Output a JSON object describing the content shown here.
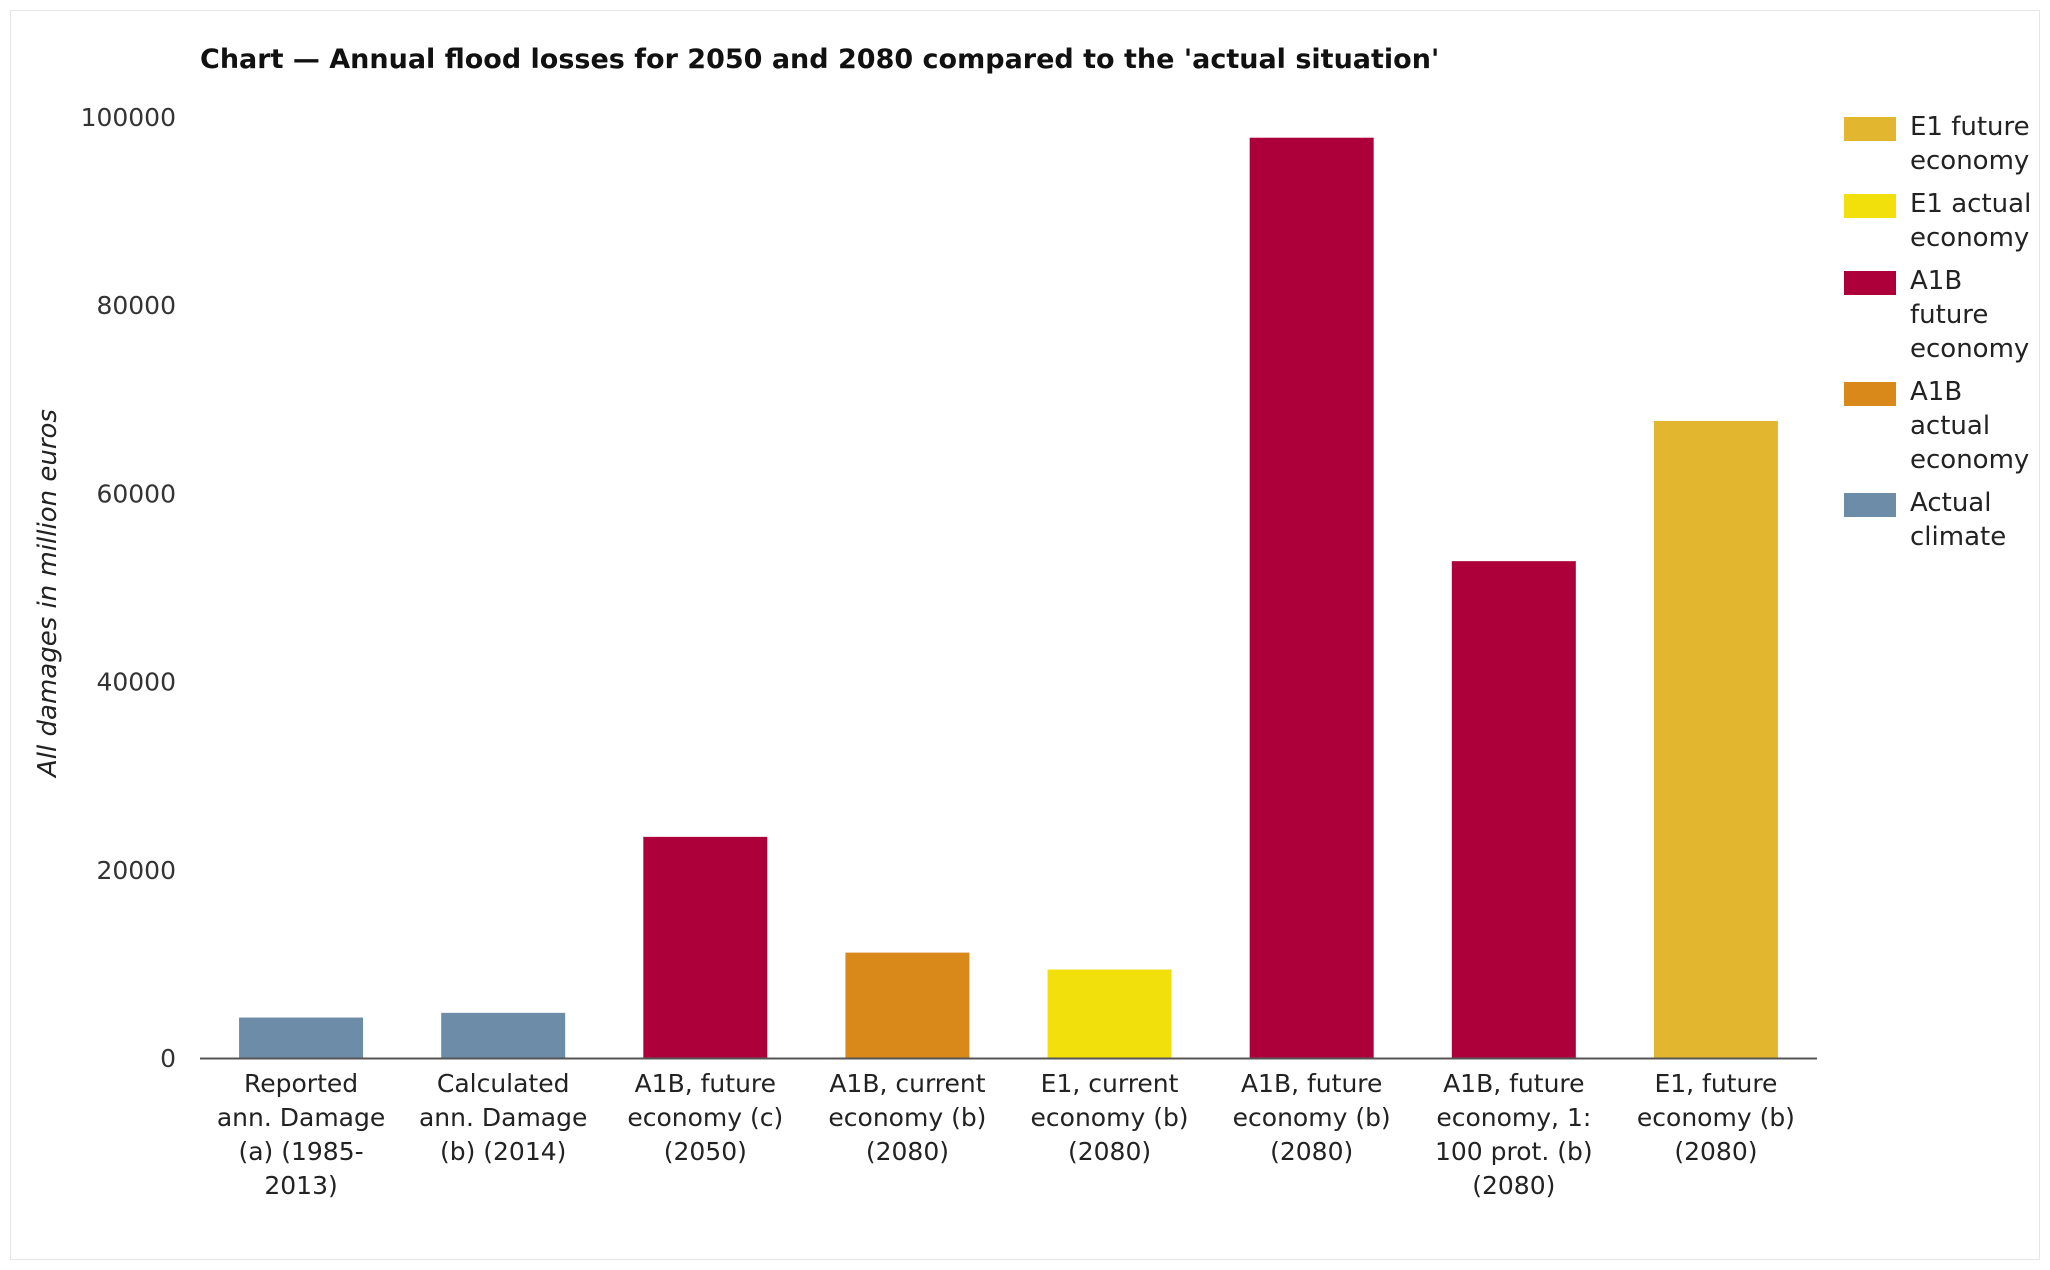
{
  "chart_data": {
    "type": "bar",
    "title": "Chart — Annual flood losses for 2050 and 2080 compared to the 'actual situation'",
    "ylabel": "All damages in million euros",
    "xlabel": "",
    "ylim": [
      0,
      100000
    ],
    "yticks": [
      0,
      20000,
      40000,
      60000,
      80000,
      100000
    ],
    "grid": false,
    "legend_position": "right",
    "legend": [
      {
        "label": "E1 future economy",
        "color": "#e2b62e"
      },
      {
        "label": "E1 actual economy",
        "color": "#f1e00b"
      },
      {
        "label": "A1B future economy",
        "color": "#ad003a"
      },
      {
        "label": "A1B actual economy",
        "color": "#d98919"
      },
      {
        "label": "Actual climate",
        "color": "#6d8ca8"
      }
    ],
    "bars": [
      {
        "label": [
          "Reported",
          "ann. Damage",
          "(a) (1985-",
          "2013)"
        ],
        "value": 4300,
        "color": "#6d8ca8"
      },
      {
        "label": [
          "Calculated",
          "ann. Damage",
          "(b) (2014)"
        ],
        "value": 4800,
        "color": "#6d8ca8"
      },
      {
        "label": [
          "A1B, future",
          "economy (c)",
          "(2050)"
        ],
        "value": 23500,
        "color": "#ad003a"
      },
      {
        "label": [
          "A1B, current",
          "economy (b)",
          "(2080)"
        ],
        "value": 11200,
        "color": "#d98919"
      },
      {
        "label": [
          "E1, current",
          "economy (b)",
          "(2080)"
        ],
        "value": 9400,
        "color": "#f1e00b"
      },
      {
        "label": [
          "A1B, future",
          "economy (b)",
          "(2080)"
        ],
        "value": 97800,
        "color": "#ad003a"
      },
      {
        "label": [
          "A1B, future",
          "economy, 1:",
          "100 prot. (b)",
          "(2080)"
        ],
        "value": 52800,
        "color": "#ad003a"
      },
      {
        "label": [
          "E1, future",
          "economy (b)",
          "(2080)"
        ],
        "value": 67700,
        "color": "#e2b62e"
      }
    ]
  }
}
